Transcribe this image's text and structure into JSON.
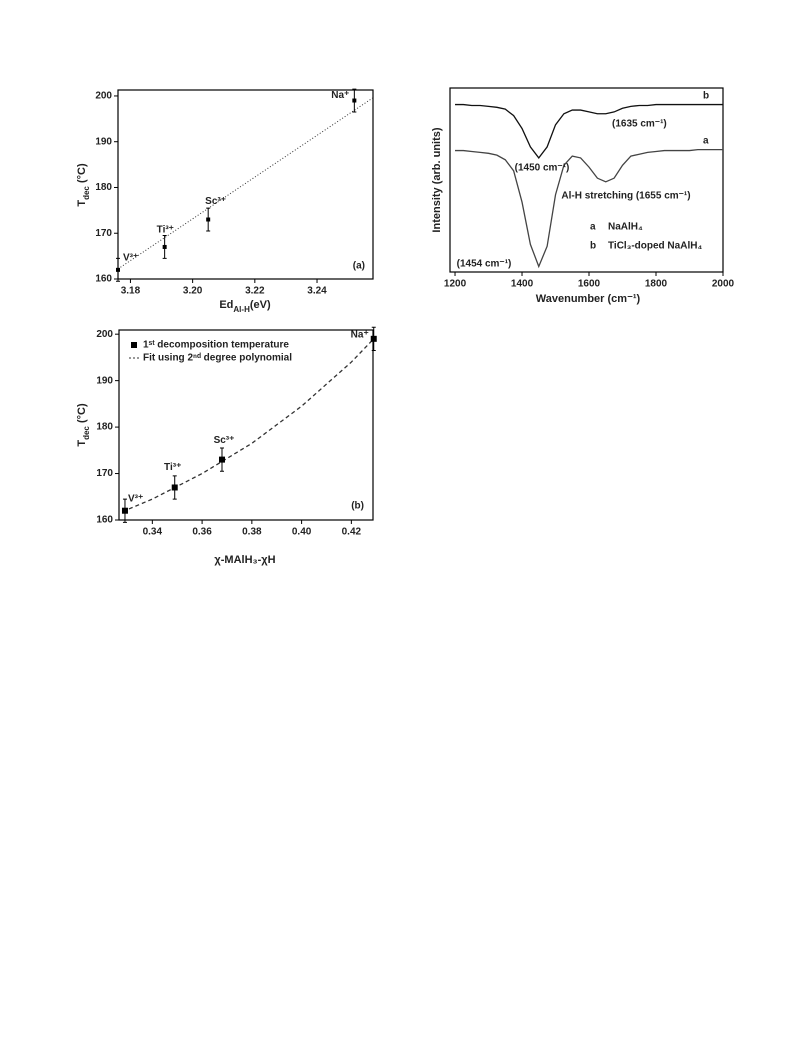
{
  "chart_data": [
    {
      "type": "scatter",
      "panel_label": "(a)",
      "x_label": [
        "Ed",
        "Al-H",
        "(eV)"
      ],
      "y_label": [
        "T",
        "dec",
        " (°C)"
      ],
      "x": [
        3.176,
        3.191,
        3.205,
        3.252
      ],
      "values": [
        162,
        167,
        173,
        199
      ],
      "errors": [
        2.5,
        2.5,
        2.5,
        2.5
      ],
      "point_labels": [
        "V³⁺",
        "Ti³⁺",
        "Sc³⁺",
        "Na⁺"
      ],
      "color": "#000000",
      "fit": {
        "style": "dotted",
        "x": [
          3.176,
          3.258
        ],
        "values": [
          162.2,
          199.6
        ]
      },
      "xlim": [
        3.176,
        3.258
      ],
      "ylim": [
        160,
        201.3
      ],
      "xticks": [
        3.18,
        {
          "value": 3.2,
          "label": "3.20"
        },
        3.22,
        3.24
      ],
      "yticks": [
        160,
        170,
        180,
        190,
        200
      ]
    },
    {
      "type": "scatter",
      "panel_label": "(b)",
      "x_label": [
        "χ-MAlH₃-χH"
      ],
      "y_label": [
        "T",
        "dec",
        " (°C)"
      ],
      "name": "1ˢᵗ decomposition temperature",
      "x": [
        0.329,
        0.349,
        0.368,
        0.429
      ],
      "values": [
        162,
        167,
        173,
        199
      ],
      "errors": [
        2.5,
        2.5,
        2.5,
        2.5
      ],
      "point_labels": [
        "V³⁺",
        "Ti³⁺",
        "Sc³⁺",
        "Na⁺"
      ],
      "color": "#000000",
      "fit": {
        "name": "Fit using 2ⁿᵈ degree polynomial",
        "style": "dashed",
        "x": [
          0.328,
          0.34,
          0.36,
          0.38,
          0.4,
          0.42,
          0.429
        ],
        "values": [
          161.8,
          164.5,
          170,
          176.5,
          184.5,
          194,
          199
        ]
      },
      "xlim": [
        0.3266,
        0.4287
      ],
      "ylim": [
        160,
        200.9
      ],
      "xticks": [
        0.34,
        0.36,
        0.38,
        {
          "value": 0.4,
          "label": "0.40"
        },
        0.42
      ],
      "yticks": [
        160,
        170,
        180,
        190,
        200
      ]
    },
    {
      "type": "line",
      "x_label": [
        "Wavenumber (cm⁻¹)"
      ],
      "y_label": [
        "Intensity (arb. units)"
      ],
      "x": [
        1200,
        1225,
        1250,
        1275,
        1300,
        1325,
        1350,
        1375,
        1400,
        1425,
        1450,
        1475,
        1500,
        1525,
        1550,
        1575,
        1600,
        1625,
        1650,
        1675,
        1700,
        1725,
        1750,
        1775,
        1800,
        1825,
        1850,
        1875,
        1900,
        1925,
        1950,
        1975,
        2000
      ],
      "series": [
        {
          "key": "a",
          "name": "NaAlH₄",
          "color": "#444444",
          "values": [
            66,
            66,
            65.5,
            65,
            64.5,
            63.5,
            61,
            55,
            38,
            15,
            3,
            14,
            42,
            58,
            63,
            62,
            57,
            51,
            49,
            51,
            58,
            63,
            64,
            65,
            65.5,
            66,
            66,
            66,
            66,
            66.5,
            66.5,
            66.5,
            66.5
          ]
        },
        {
          "key": "b",
          "name": "TiCl₃-doped NaAlH₄",
          "color": "#111111",
          "values": [
            91,
            91,
            90.5,
            90.5,
            90,
            89.5,
            88.5,
            85,
            78,
            68,
            62,
            68,
            80,
            86,
            88,
            88,
            87,
            86,
            86,
            87,
            89,
            90,
            90.5,
            90.5,
            91,
            91,
            91,
            91,
            91,
            91,
            91,
            91,
            91
          ]
        }
      ],
      "annotations": [
        "(1635 cm⁻¹)",
        "(1450 cm⁻¹)",
        "Al-H stretching (1655 cm⁻¹)",
        "(1454 cm⁻¹)"
      ],
      "xlim": [
        1185,
        2000
      ],
      "ylim": [
        0,
        100
      ],
      "xticks": [
        1200,
        1400,
        1600,
        1800,
        2000
      ]
    }
  ]
}
